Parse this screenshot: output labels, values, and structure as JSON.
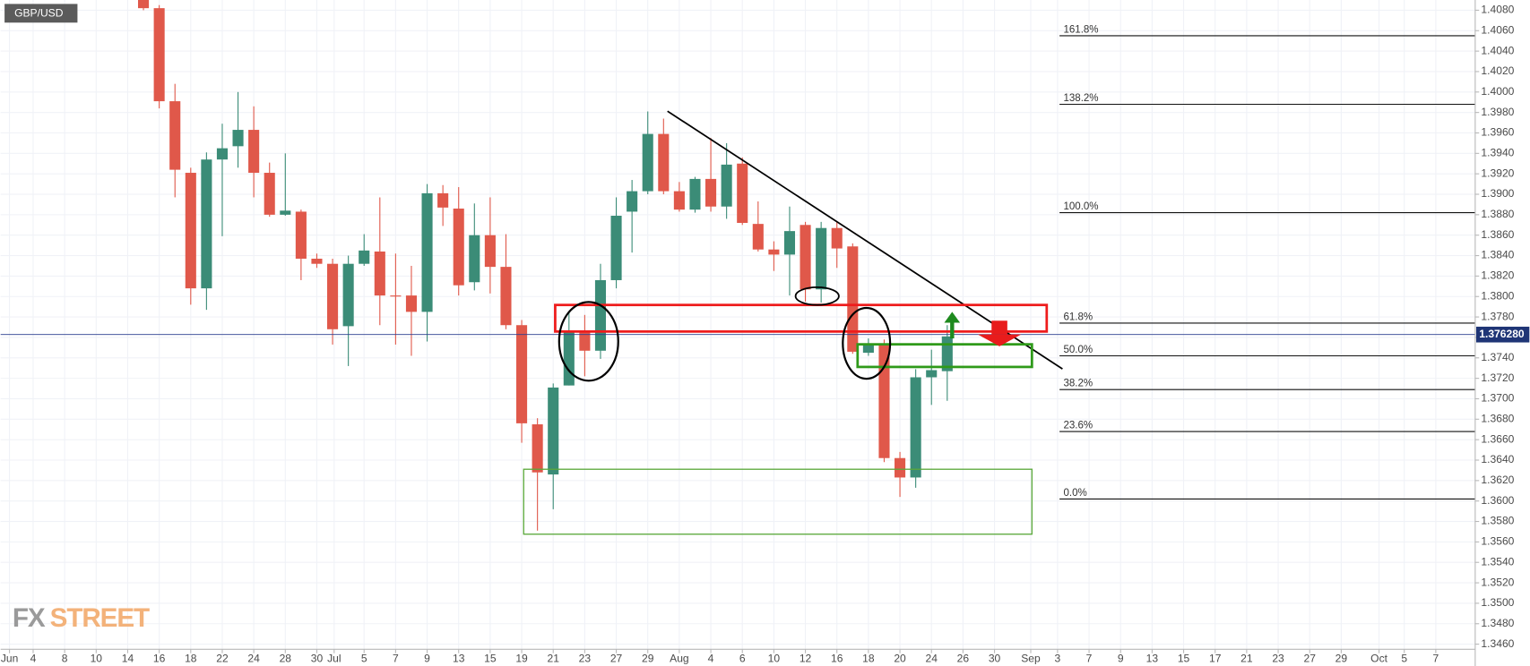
{
  "chart_data": {
    "type": "candlestick",
    "title": "GBP/USD",
    "watermark": [
      "FX",
      "STREET"
    ],
    "up_color": "#3b8c77",
    "down_color": "#e0584a",
    "grid": true,
    "x": [
      10,
      11,
      12,
      13,
      14,
      15,
      16,
      17,
      18,
      19,
      20,
      21,
      22,
      23,
      24,
      25,
      26,
      27,
      28,
      29,
      30,
      31,
      32,
      33,
      34,
      35,
      36,
      37,
      38,
      39,
      40,
      41,
      42,
      43,
      44,
      45,
      46,
      47,
      48,
      49,
      50,
      51,
      52,
      53,
      54,
      55,
      56,
      57,
      58,
      59,
      60,
      61
    ],
    "open": [
      1.4095,
      1.4082,
      1.3991,
      1.3921,
      1.3808,
      1.3934,
      1.3947,
      1.3963,
      1.3921,
      1.388,
      1.3883,
      1.3837,
      1.3832,
      1.3771,
      1.3832,
      1.3844,
      1.3801,
      1.3801,
      1.3785,
      1.3901,
      1.3886,
      1.3814,
      1.386,
      1.3829,
      1.3772,
      1.3675,
      1.3626,
      1.3713,
      1.3765,
      1.3747,
      1.3816,
      1.3883,
      1.3903,
      1.3959,
      1.3903,
      1.3885,
      1.3915,
      1.3888,
      1.393,
      1.3871,
      1.3846,
      1.3841,
      1.387,
      1.3807,
      1.3867,
      1.3849,
      1.3745,
      1.3753,
      1.3642,
      1.3623,
      1.3721,
      1.3727
    ],
    "high": [
      1.4102,
      1.4085,
      1.4008,
      1.3926,
      1.3941,
      1.3969,
      1.4,
      1.3986,
      1.3931,
      1.394,
      1.3885,
      1.3842,
      1.3837,
      1.384,
      1.3861,
      1.3897,
      1.3842,
      1.383,
      1.391,
      1.3909,
      1.3907,
      1.3891,
      1.3897,
      1.3861,
      1.3777,
      1.3681,
      1.3715,
      1.3785,
      1.3782,
      1.3832,
      1.3897,
      1.3914,
      1.3981,
      1.3974,
      1.3912,
      1.3917,
      1.3955,
      1.395,
      1.3936,
      1.3893,
      1.3854,
      1.3888,
      1.3873,
      1.3873,
      1.3873,
      1.3852,
      1.3759,
      1.3758,
      1.3648,
      1.3729,
      1.3748,
      1.3772
    ],
    "low": [
      1.408,
      1.3984,
      1.3897,
      1.3792,
      1.3787,
      1.3859,
      1.3926,
      1.3897,
      1.3878,
      1.3879,
      1.3816,
      1.3828,
      1.3753,
      1.3732,
      1.383,
      1.3772,
      1.3753,
      1.3742,
      1.3756,
      1.3869,
      1.3801,
      1.3806,
      1.3803,
      1.3768,
      1.3657,
      1.3571,
      1.3592,
      1.3713,
      1.3722,
      1.3739,
      1.3808,
      1.3843,
      1.39,
      1.39,
      1.3883,
      1.3882,
      1.3883,
      1.3876,
      1.387,
      1.3844,
      1.3825,
      1.3801,
      1.3795,
      1.3794,
      1.3828,
      1.3744,
      1.3742,
      1.3638,
      1.3604,
      1.3613,
      1.3694,
      1.3698
    ],
    "close": [
      1.4082,
      1.3991,
      1.3924,
      1.3808,
      1.3934,
      1.3945,
      1.3963,
      1.3921,
      1.388,
      1.3884,
      1.3837,
      1.3832,
      1.3768,
      1.3832,
      1.3845,
      1.3801,
      1.38,
      1.3785,
      1.3901,
      1.3887,
      1.3811,
      1.386,
      1.3829,
      1.3772,
      1.3676,
      1.3628,
      1.3711,
      1.3766,
      1.3747,
      1.3816,
      1.3879,
      1.3903,
      1.3959,
      1.3903,
      1.3885,
      1.3915,
      1.3888,
      1.3929,
      1.3872,
      1.3846,
      1.3841,
      1.3864,
      1.3807,
      1.3867,
      1.3847,
      1.3746,
      1.3753,
      1.3642,
      1.3623,
      1.3721,
      1.3728,
      1.3761
    ],
    "xlim": [
      0.9375,
      94.5
    ],
    "xticks": [
      {
        "value": 1.5,
        "label": "Jun"
      },
      {
        "value": 3,
        "label": "4"
      },
      {
        "value": 5,
        "label": "8"
      },
      {
        "value": 7,
        "label": "10"
      },
      {
        "value": 9,
        "label": "14"
      },
      {
        "value": 11,
        "label": "16"
      },
      {
        "value": 13,
        "label": "18"
      },
      {
        "value": 15,
        "label": "22"
      },
      {
        "value": 17,
        "label": "24"
      },
      {
        "value": 19,
        "label": "28"
      },
      {
        "value": 21,
        "label": "30"
      },
      {
        "value": 22.1,
        "label": "Jul"
      },
      {
        "value": 24,
        "label": "5"
      },
      {
        "value": 26,
        "label": "7"
      },
      {
        "value": 28,
        "label": "9"
      },
      {
        "value": 30,
        "label": "13"
      },
      {
        "value": 32,
        "label": "15"
      },
      {
        "value": 34,
        "label": "19"
      },
      {
        "value": 36,
        "label": "21"
      },
      {
        "value": 38,
        "label": "23"
      },
      {
        "value": 40,
        "label": "27"
      },
      {
        "value": 42,
        "label": "29"
      },
      {
        "value": 44,
        "label": "Aug"
      },
      {
        "value": 46,
        "label": "4"
      },
      {
        "value": 48,
        "label": "6"
      },
      {
        "value": 50,
        "label": "10"
      },
      {
        "value": 52,
        "label": "12"
      },
      {
        "value": 54,
        "label": "16"
      },
      {
        "value": 56,
        "label": "18"
      },
      {
        "value": 58,
        "label": "20"
      },
      {
        "value": 60,
        "label": "24"
      },
      {
        "value": 62,
        "label": "26"
      },
      {
        "value": 64,
        "label": "30"
      },
      {
        "value": 66.3,
        "label": "Sep"
      },
      {
        "value": 68,
        "label": "3"
      },
      {
        "value": 70,
        "label": "7"
      },
      {
        "value": 72,
        "label": "9"
      },
      {
        "value": 74,
        "label": "13"
      },
      {
        "value": 76,
        "label": "15"
      },
      {
        "value": 78,
        "label": "17"
      },
      {
        "value": 80,
        "label": "21"
      },
      {
        "value": 82,
        "label": "23"
      },
      {
        "value": 84,
        "label": "27"
      },
      {
        "value": 86,
        "label": "29"
      },
      {
        "value": 88.4,
        "label": "Oct"
      },
      {
        "value": 90,
        "label": "5"
      },
      {
        "value": 92,
        "label": "7"
      }
    ],
    "ylim": [
      1.3455,
      1.409
    ],
    "yticks": [
      {
        "value": 1.346,
        "label": "1.3460"
      },
      {
        "value": 1.348,
        "label": "1.3480"
      },
      {
        "value": 1.35,
        "label": "1.3500"
      },
      {
        "value": 1.352,
        "label": "1.3520"
      },
      {
        "value": 1.354,
        "label": "1.3540"
      },
      {
        "value": 1.356,
        "label": "1.3560"
      },
      {
        "value": 1.358,
        "label": "1.3580"
      },
      {
        "value": 1.36,
        "label": "1.3600"
      },
      {
        "value": 1.362,
        "label": "1.3620"
      },
      {
        "value": 1.364,
        "label": "1.3640"
      },
      {
        "value": 1.366,
        "label": "1.3660"
      },
      {
        "value": 1.368,
        "label": "1.3680"
      },
      {
        "value": 1.37,
        "label": "1.3700"
      },
      {
        "value": 1.372,
        "label": "1.3720"
      },
      {
        "value": 1.374,
        "label": "1.3740"
      },
      {
        "value": 1.376,
        "label": "1.3760"
      },
      {
        "value": 1.378,
        "label": "1.3780"
      },
      {
        "value": 1.38,
        "label": "1.3800"
      },
      {
        "value": 1.382,
        "label": "1.3820"
      },
      {
        "value": 1.384,
        "label": "1.3840"
      },
      {
        "value": 1.386,
        "label": "1.3860"
      },
      {
        "value": 1.388,
        "label": "1.3880"
      },
      {
        "value": 1.39,
        "label": "1.3900"
      },
      {
        "value": 1.392,
        "label": "1.3920"
      },
      {
        "value": 1.394,
        "label": "1.3940"
      },
      {
        "value": 1.396,
        "label": "1.3960"
      },
      {
        "value": 1.398,
        "label": "1.3980"
      },
      {
        "value": 1.4,
        "label": "1.4000"
      },
      {
        "value": 1.402,
        "label": "1.4020"
      },
      {
        "value": 1.404,
        "label": "1.4040"
      },
      {
        "value": 1.406,
        "label": "1.4060"
      },
      {
        "value": 1.408,
        "label": "1.4080"
      }
    ],
    "last_price": {
      "value": 1.37628,
      "label": "1.376280"
    },
    "fib_levels": [
      {
        "label": "161.8%",
        "value": 1.4055
      },
      {
        "label": "138.2%",
        "value": 1.3988
      },
      {
        "label": "100.0%",
        "value": 1.3882
      },
      {
        "label": "61.8%",
        "value": 1.3774
      },
      {
        "label": "50.0%",
        "value": 1.3742
      },
      {
        "label": "38.2%",
        "value": 1.3709
      },
      {
        "label": "23.6%",
        "value": 1.3668
      },
      {
        "label": "0.0%",
        "value": 1.3602
      }
    ]
  }
}
